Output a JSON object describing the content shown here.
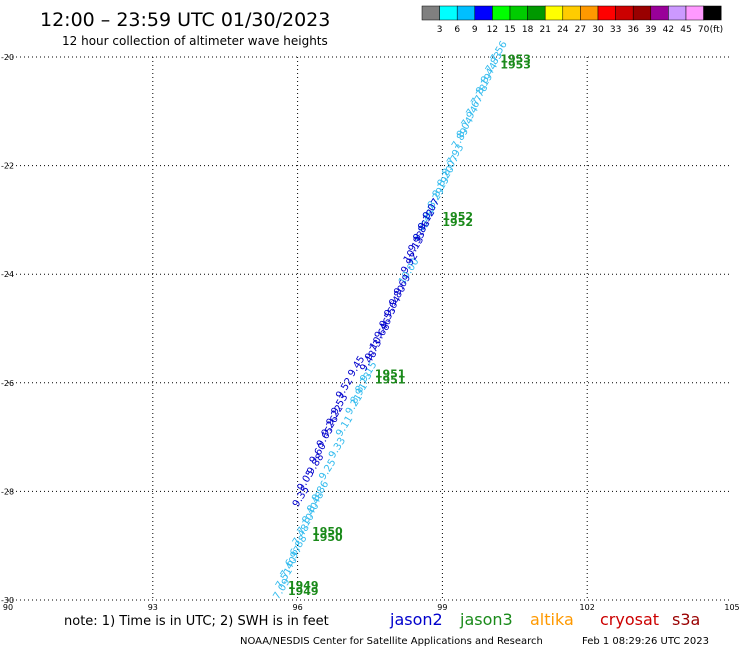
{
  "header": {
    "title": "12:00 – 23:59 UTC 01/30/2023",
    "subtitle": "12 hour collection of altimeter wave heights"
  },
  "colorbar": {
    "colors": [
      "#808080",
      "#00ffff",
      "#00bfff",
      "#0000ff",
      "#00ff00",
      "#00cc00",
      "#009900",
      "#ffff00",
      "#ffcc00",
      "#ff9900",
      "#ff0000",
      "#cc0000",
      "#990000",
      "#990099",
      "#cc99ff",
      "#ff99ff",
      "#000000"
    ],
    "labels": [
      "3",
      "6",
      "9",
      "12",
      "15",
      "18",
      "21",
      "24",
      "27",
      "30",
      "33",
      "36",
      "39",
      "42",
      "45",
      "70"
    ],
    "unit": "(ft)"
  },
  "footer": {
    "note": "note: 1) Time is in UTC; 2) SWH is in feet",
    "missions": [
      {
        "name": "jason2",
        "color": "#0000cc"
      },
      {
        "name": "jason3",
        "color": "#1a8a1a"
      },
      {
        "name": "altika",
        "color": "#ff9900"
      },
      {
        "name": "cryosat",
        "color": "#cc0000"
      },
      {
        "name": "s3a",
        "color": "#990000"
      }
    ],
    "credit": "NOAA/NESDIS Center for Satellite Applications and Research",
    "generated": "Feb  1 08:29:26 UTC 2023"
  },
  "chart_data": {
    "type": "scatter",
    "xlim": [
      90,
      105
    ],
    "ylim": [
      -30,
      -20
    ],
    "x_ticks": [
      "90",
      "93",
      "96",
      "99",
      "102",
      "105"
    ],
    "y_ticks": [
      "-20",
      "-22",
      "-24",
      "-26",
      "-28",
      "-30"
    ],
    "grid": true,
    "series": [
      {
        "name": "jason3",
        "color": "#33bbee",
        "points": [
          {
            "x": 95.6,
            "y": -30.0,
            "label": "7.09"
          },
          {
            "x": 95.65,
            "y": -29.8,
            "label": "7.51"
          },
          {
            "x": 95.75,
            "y": -29.6,
            "label": "7.40"
          },
          {
            "x": 95.85,
            "y": -29.4,
            "label": "6.97"
          },
          {
            "x": 95.95,
            "y": -29.2,
            "label": "6.88"
          },
          {
            "x": 96.0,
            "y": -29.0,
            "label": "7.48"
          },
          {
            "x": 96.1,
            "y": -28.8,
            "label": "7.10"
          },
          {
            "x": 96.2,
            "y": -28.6,
            "label": "8.40"
          },
          {
            "x": 96.3,
            "y": -28.4,
            "label": "8.48"
          },
          {
            "x": 96.4,
            "y": -28.2,
            "label": "8.86"
          },
          {
            "x": 96.55,
            "y": -27.8,
            "label": "9.25"
          },
          {
            "x": 96.75,
            "y": -27.4,
            "label": "9.33"
          },
          {
            "x": 96.9,
            "y": -27.0,
            "label": "9.11"
          },
          {
            "x": 97.1,
            "y": -26.6,
            "label": "9.21"
          },
          {
            "x": 97.2,
            "y": -26.4,
            "label": "8.91"
          },
          {
            "x": 97.3,
            "y": -26.2,
            "label": "8.73"
          },
          {
            "x": 97.4,
            "y": -26.0,
            "label": "9.15"
          },
          {
            "x": 98.2,
            "y": -24.2,
            "label": "10.00"
          },
          {
            "x": 98.5,
            "y": -23.4,
            "label": "8.92"
          },
          {
            "x": 98.6,
            "y": -23.2,
            "label": "8.46"
          },
          {
            "x": 98.7,
            "y": -23.0,
            "label": "8.27"
          },
          {
            "x": 98.8,
            "y": -22.8,
            "label": "8.29"
          },
          {
            "x": 98.9,
            "y": -22.6,
            "label": "8.19"
          },
          {
            "x": 99.0,
            "y": -22.4,
            "label": "8.20"
          },
          {
            "x": 99.1,
            "y": -22.2,
            "label": "8.07"
          },
          {
            "x": 99.2,
            "y": -22.0,
            "label": "7.93"
          },
          {
            "x": 99.3,
            "y": -21.7,
            "label": "7.89"
          },
          {
            "x": 99.4,
            "y": -21.5,
            "label": "8.04"
          },
          {
            "x": 99.5,
            "y": -21.3,
            "label": "7.94"
          },
          {
            "x": 99.6,
            "y": -21.1,
            "label": "7.67"
          },
          {
            "x": 99.7,
            "y": -20.9,
            "label": "7.78"
          },
          {
            "x": 99.8,
            "y": -20.7,
            "label": "8.19"
          },
          {
            "x": 99.9,
            "y": -20.5,
            "label": "8.44"
          },
          {
            "x": 100.0,
            "y": -20.3,
            "label": "7.83"
          },
          {
            "x": 100.1,
            "y": -20.1,
            "label": "7.56"
          }
        ]
      },
      {
        "name": "jason2",
        "color": "#0000cc",
        "points": [
          {
            "x": 96.0,
            "y": -28.3,
            "label": "9.35"
          },
          {
            "x": 96.1,
            "y": -28.0,
            "label": "9.05"
          },
          {
            "x": 96.3,
            "y": -27.7,
            "label": "9.88"
          },
          {
            "x": 96.35,
            "y": -27.5,
            "label": "9.60"
          },
          {
            "x": 96.5,
            "y": -27.2,
            "label": "9.65"
          },
          {
            "x": 96.6,
            "y": -27.0,
            "label": "9.26"
          },
          {
            "x": 96.7,
            "y": -26.8,
            "label": "9.22"
          },
          {
            "x": 96.8,
            "y": -26.6,
            "label": "9.53"
          },
          {
            "x": 96.9,
            "y": -26.3,
            "label": "9.52"
          },
          {
            "x": 97.15,
            "y": -25.9,
            "label": "9.45"
          },
          {
            "x": 97.4,
            "y": -25.8,
            "label": "9.48"
          },
          {
            "x": 97.5,
            "y": -25.6,
            "label": "9.73"
          },
          {
            "x": 97.6,
            "y": -25.4,
            "label": "10.68"
          },
          {
            "x": 97.7,
            "y": -25.2,
            "label": "9.46"
          },
          {
            "x": 97.8,
            "y": -25.0,
            "label": "9.55"
          },
          {
            "x": 97.9,
            "y": -24.8,
            "label": "9.64"
          },
          {
            "x": 98.0,
            "y": -24.6,
            "label": "9.80"
          },
          {
            "x": 98.1,
            "y": -24.4,
            "label": "9.69"
          },
          {
            "x": 98.25,
            "y": -24.0,
            "label": "9.92"
          },
          {
            "x": 98.3,
            "y": -23.8,
            "label": "10.13"
          },
          {
            "x": 98.4,
            "y": -23.6,
            "label": "9.93"
          },
          {
            "x": 98.5,
            "y": -23.4,
            "label": "9.86"
          },
          {
            "x": 98.6,
            "y": -23.2,
            "label": "9.12"
          },
          {
            "x": 98.7,
            "y": -23.0,
            "label": "9.07"
          }
        ]
      }
    ],
    "time_labels": [
      {
        "x": 100.2,
        "y": -20.1,
        "text": "1953"
      },
      {
        "x": 99.0,
        "y": -23.0,
        "text": "1952"
      },
      {
        "x": 97.6,
        "y": -25.9,
        "text": "1951"
      },
      {
        "x": 96.3,
        "y": -28.8,
        "text": "1950"
      },
      {
        "x": 95.8,
        "y": -29.8,
        "text": "1949"
      }
    ]
  }
}
